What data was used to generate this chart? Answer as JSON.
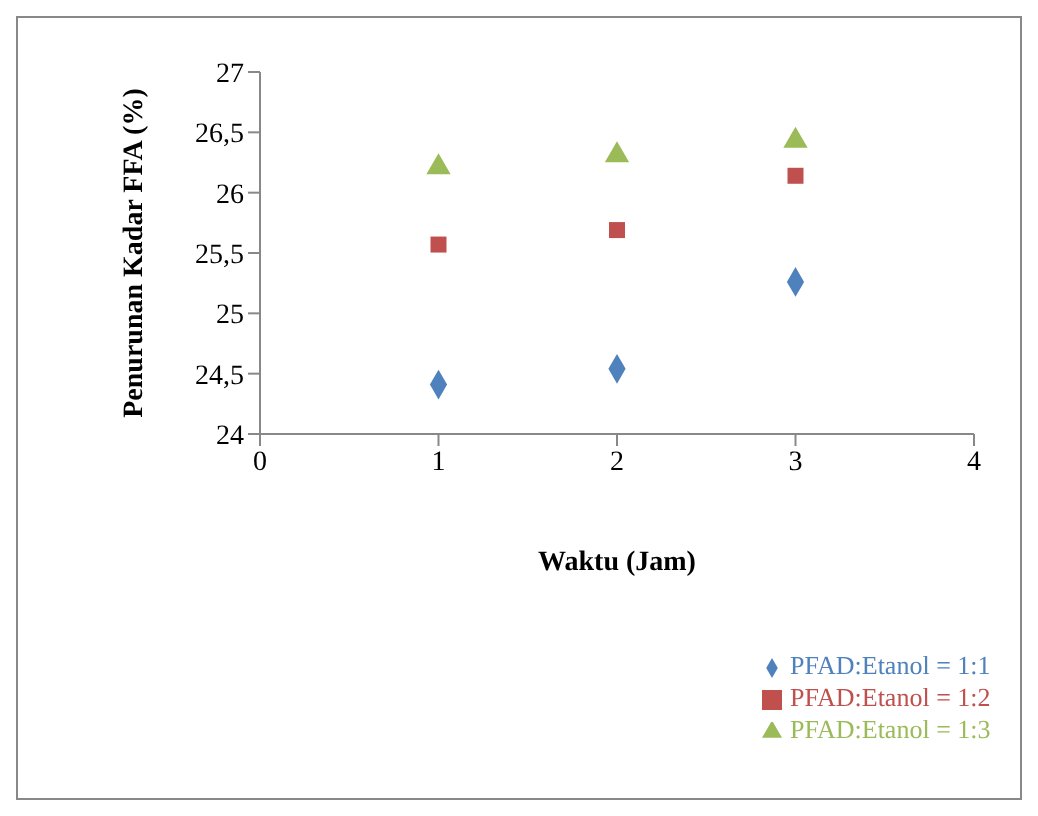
{
  "chart_data": {
    "type": "scatter",
    "xlabel": "Waktu (Jam)",
    "ylabel": "Penurunan Kadar FFA (%)",
    "x": [
      1,
      2,
      3
    ],
    "series": [
      {
        "name": "PFAD:Etanol = 1:1",
        "color": "#4f81bd",
        "marker": "diamond",
        "values": [
          24.41,
          24.54,
          25.26
        ]
      },
      {
        "name": "PFAD:Etanol = 1:2",
        "color": "#c0504d",
        "marker": "square",
        "values": [
          25.57,
          25.69,
          26.14
        ]
      },
      {
        "name": "PFAD:Etanol = 1:3",
        "color": "#9bbb59",
        "marker": "triangle",
        "values": [
          26.21,
          26.31,
          26.43
        ]
      }
    ],
    "xlim": [
      0,
      4
    ],
    "xticks": [
      0,
      1,
      2,
      3,
      4
    ],
    "ylim": [
      24,
      27
    ],
    "yticks": [
      24,
      {
        "value": 24.5,
        "label": "24,5"
      },
      25,
      {
        "value": 25.5,
        "label": "25,5"
      },
      26,
      {
        "value": 26.5,
        "label": "26,5"
      },
      27
    ],
    "grid": false,
    "legend": "bottom right"
  }
}
